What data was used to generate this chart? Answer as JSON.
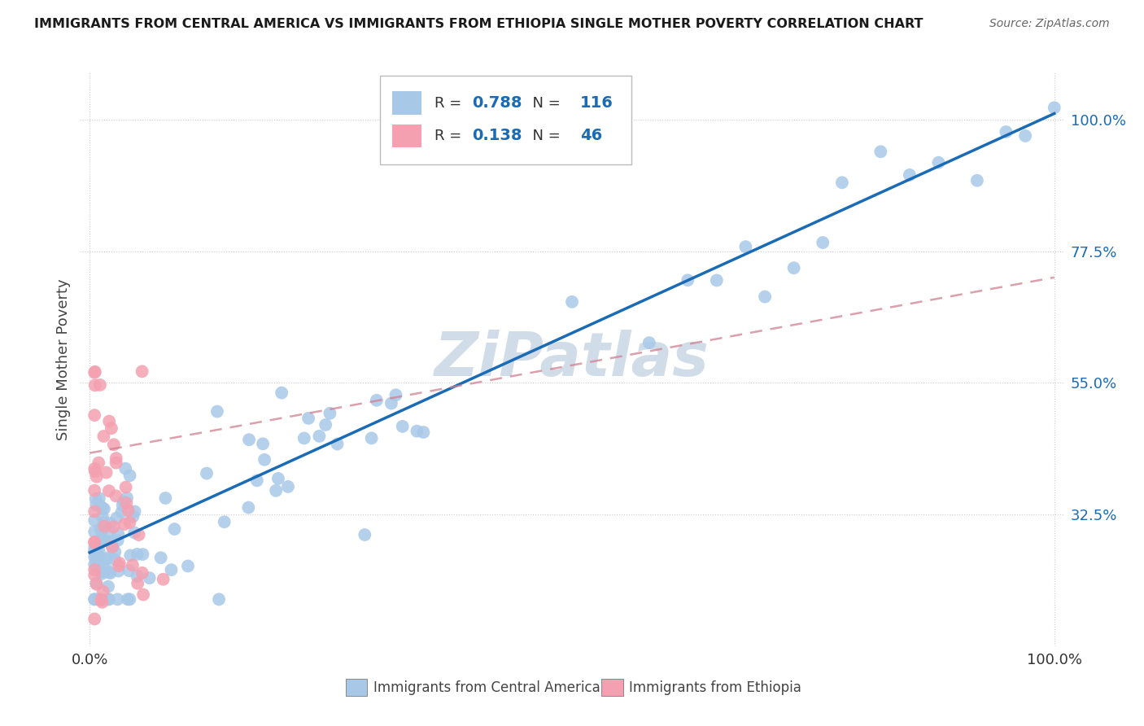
{
  "title": "IMMIGRANTS FROM CENTRAL AMERICA VS IMMIGRANTS FROM ETHIOPIA SINGLE MOTHER POVERTY CORRELATION CHART",
  "source": "Source: ZipAtlas.com",
  "xlabel_blue": "Immigrants from Central America",
  "xlabel_pink": "Immigrants from Ethiopia",
  "ylabel": "Single Mother Poverty",
  "blue_R": 0.788,
  "blue_N": 116,
  "pink_R": 0.138,
  "pink_N": 46,
  "blue_color": "#a8c8e8",
  "pink_color": "#f4a0b0",
  "blue_line_color": "#1a6bb5",
  "pink_line_color": "#d08090",
  "watermark": "ZiPatlas",
  "watermark_color": "#d0dde8",
  "xlim": [
    -0.01,
    1.01
  ],
  "ylim": [
    0.1,
    1.08
  ],
  "ytick_vals": [
    0.325,
    0.55,
    0.775,
    1.0
  ],
  "ytick_labels": [
    "32.5%",
    "55.0%",
    "77.5%",
    "100.0%"
  ],
  "xtick_positions": [
    0.0,
    1.0
  ],
  "xtick_labels": [
    "0.0%",
    "100.0%"
  ],
  "blue_line_x0": 0.0,
  "blue_line_y0": 0.26,
  "blue_line_x1": 1.0,
  "blue_line_y1": 1.01,
  "pink_line_x0": 0.0,
  "pink_line_y0": 0.43,
  "pink_line_x1": 1.0,
  "pink_line_y1": 0.73
}
